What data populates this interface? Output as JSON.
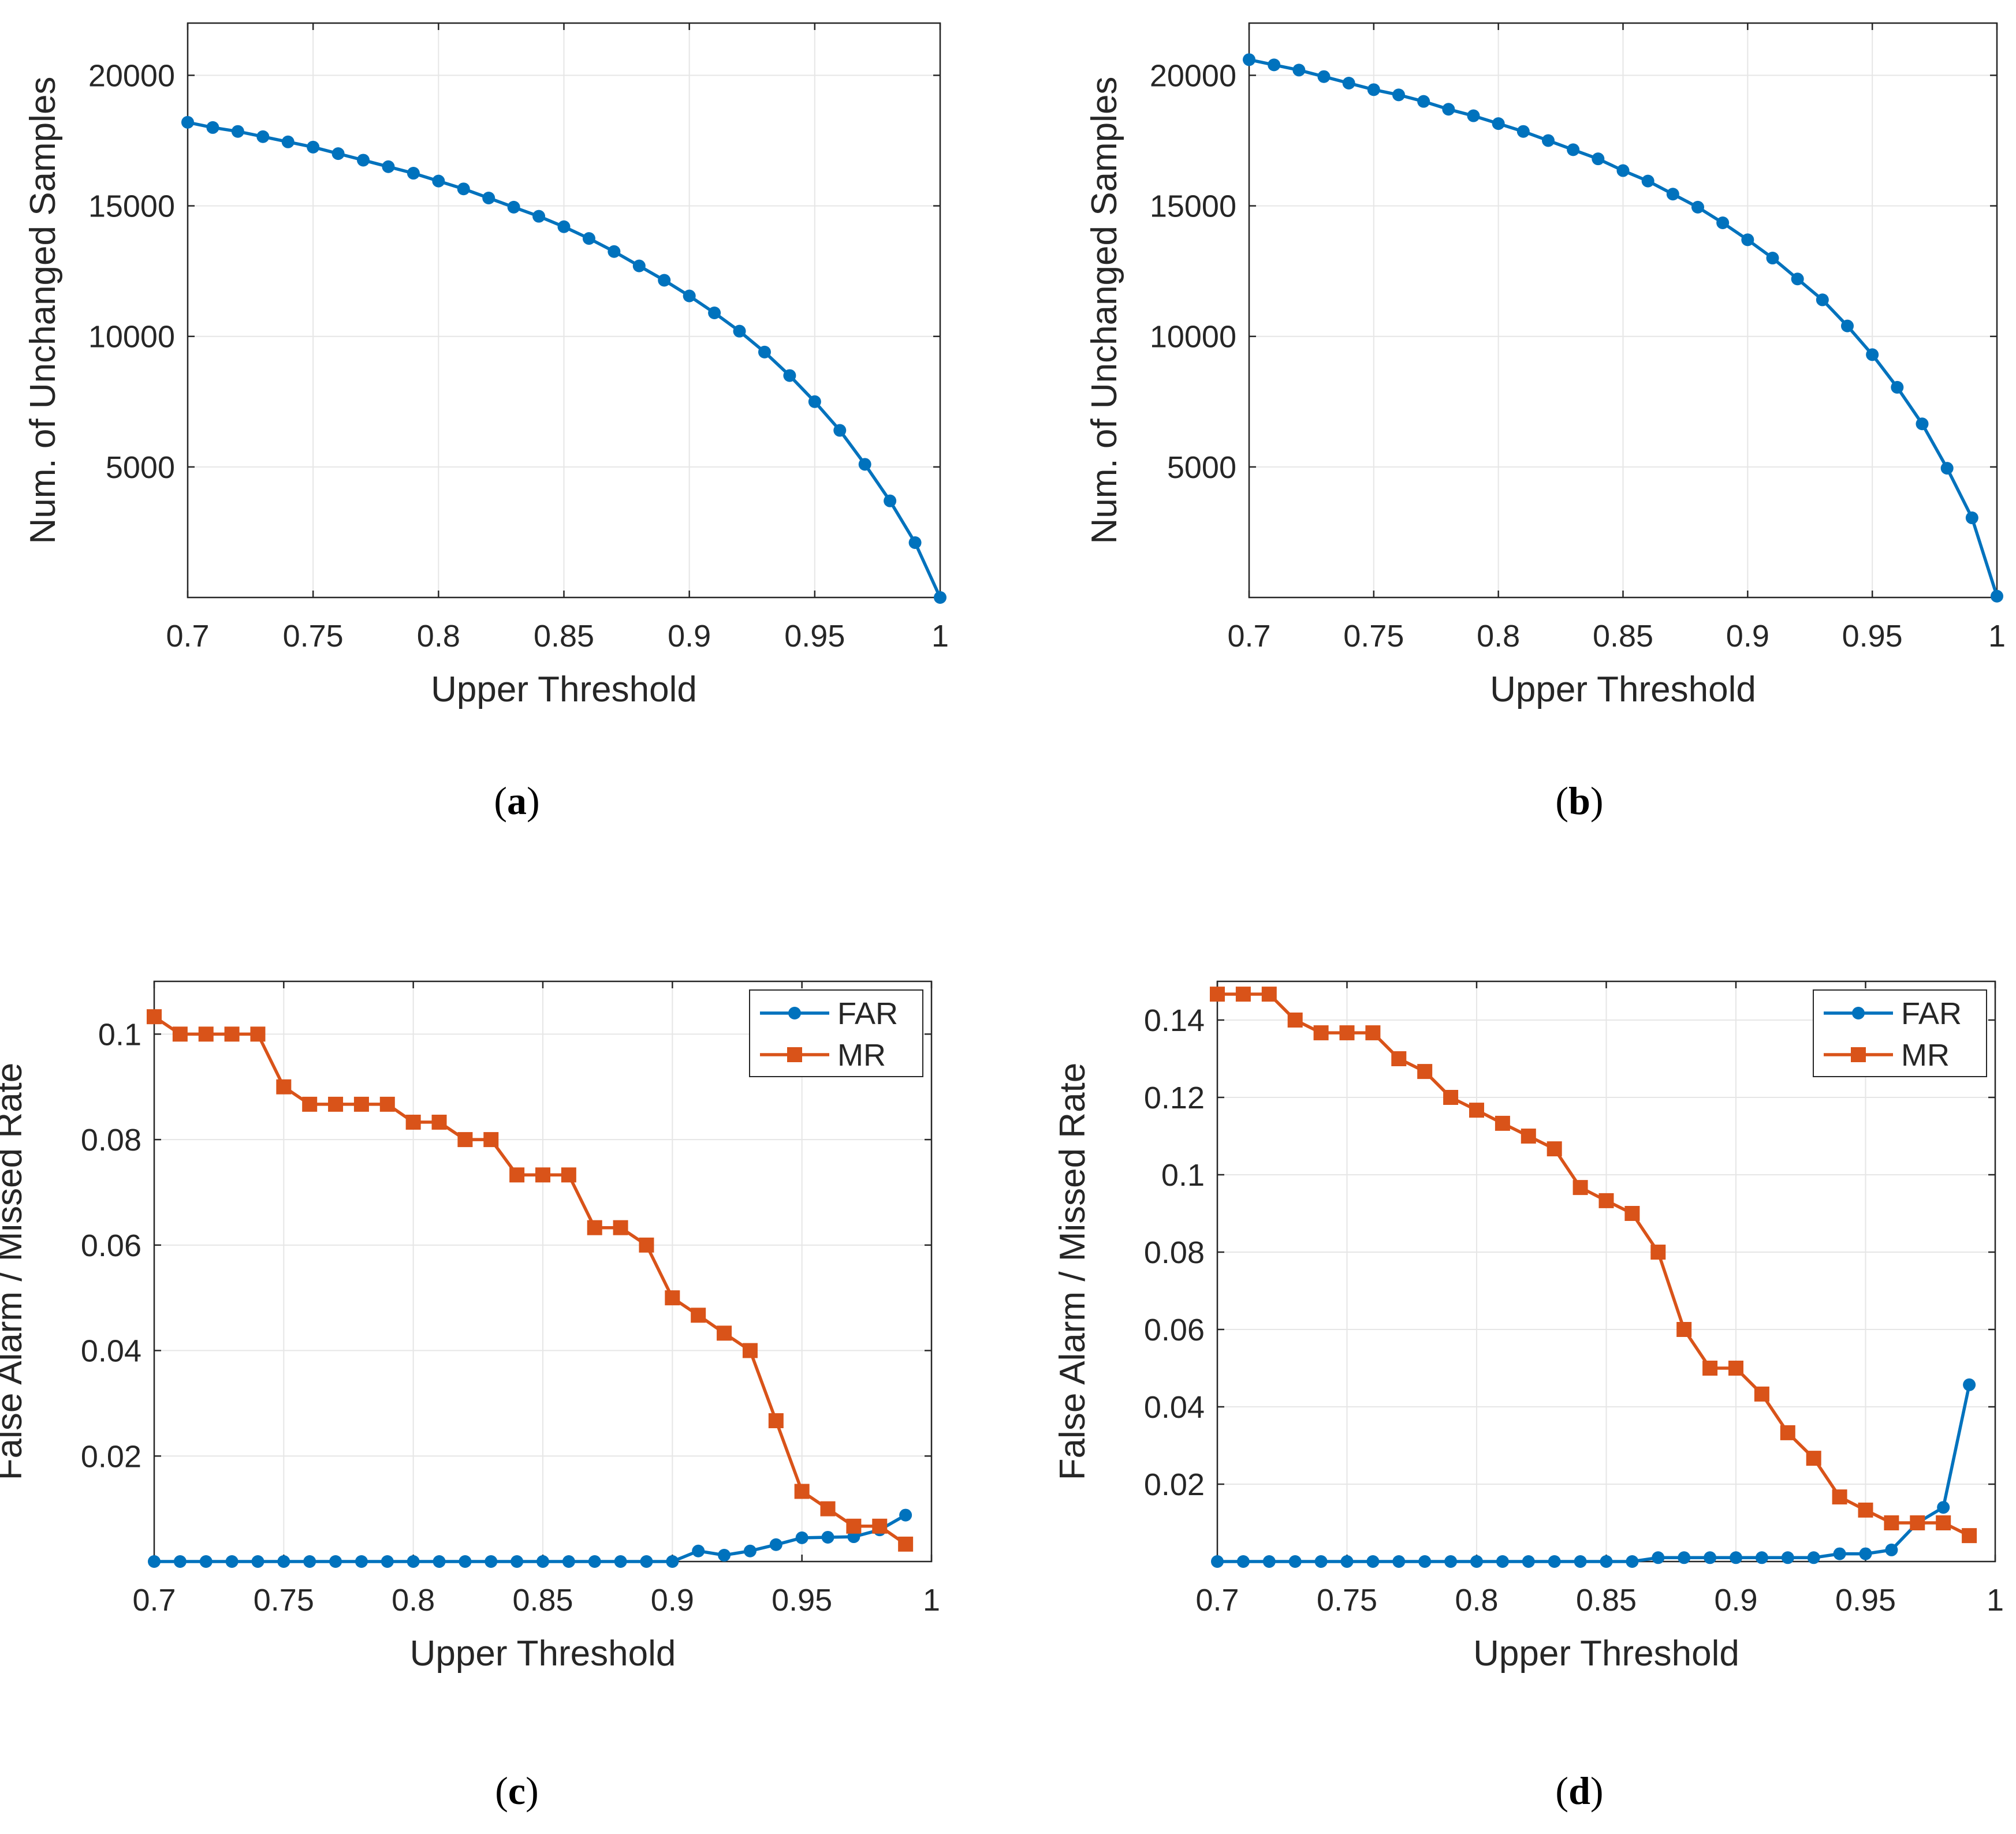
{
  "colors": {
    "far": "#0072BD",
    "mr": "#D95319",
    "grid": "#e6e6e6",
    "axis": "#262626"
  },
  "chart_data": [
    {
      "id": "a",
      "type": "line",
      "caption_letter": "a",
      "xlabel": "Upper Threshold",
      "ylabel": "Num. of Unchanged Samples",
      "xlim": [
        0.7,
        1
      ],
      "ylim": [
        0,
        22000
      ],
      "xticks": [
        0.7,
        0.75,
        0.8,
        0.85,
        0.9,
        0.95,
        1
      ],
      "xtick_labels": [
        "0.7",
        "0.75",
        "0.8",
        "0.85",
        "0.9",
        "0.95",
        "1"
      ],
      "yticks": [
        5000,
        10000,
        15000,
        20000
      ],
      "ytick_labels": [
        "5000",
        "10000",
        "15000",
        "20000"
      ],
      "legend": null,
      "series": [
        {
          "name": "samples",
          "color": "#0072BD",
          "marker": "circle",
          "x": [
            0.7,
            0.71,
            0.72,
            0.73,
            0.74,
            0.75,
            0.76,
            0.77,
            0.78,
            0.79,
            0.8,
            0.81,
            0.82,
            0.83,
            0.84,
            0.85,
            0.86,
            0.87,
            0.88,
            0.89,
            0.9,
            0.91,
            0.92,
            0.93,
            0.94,
            0.95,
            0.96,
            0.97,
            0.98,
            0.99,
            1.0
          ],
          "y": [
            18200,
            18000,
            17850,
            17650,
            17450,
            17250,
            17000,
            16750,
            16500,
            16250,
            15950,
            15650,
            15300,
            14950,
            14600,
            14200,
            13750,
            13250,
            12700,
            12150,
            11550,
            10900,
            10200,
            9400,
            8500,
            7500,
            6400,
            5100,
            3700,
            2100,
            0
          ]
        }
      ]
    },
    {
      "id": "b",
      "type": "line",
      "caption_letter": "b",
      "xlabel": "Upper Threshold",
      "ylabel": "Num. of Unchanged Samples",
      "xlim": [
        0.7,
        1
      ],
      "ylim": [
        0,
        22000
      ],
      "xticks": [
        0.7,
        0.75,
        0.8,
        0.85,
        0.9,
        0.95,
        1
      ],
      "xtick_labels": [
        "0.7",
        "0.75",
        "0.8",
        "0.85",
        "0.9",
        "0.95",
        "1"
      ],
      "yticks": [
        5000,
        10000,
        15000,
        20000
      ],
      "ytick_labels": [
        "5000",
        "10000",
        "15000",
        "20000"
      ],
      "legend": null,
      "series": [
        {
          "name": "samples",
          "color": "#0072BD",
          "marker": "circle",
          "x": [
            0.7,
            0.71,
            0.72,
            0.73,
            0.74,
            0.75,
            0.76,
            0.77,
            0.78,
            0.79,
            0.8,
            0.81,
            0.82,
            0.83,
            0.84,
            0.85,
            0.86,
            0.87,
            0.88,
            0.89,
            0.9,
            0.91,
            0.92,
            0.93,
            0.94,
            0.95,
            0.96,
            0.97,
            0.98,
            0.99,
            1.0
          ],
          "y": [
            20600,
            20400,
            20200,
            19950,
            19700,
            19450,
            19250,
            19000,
            18700,
            18450,
            18150,
            17850,
            17500,
            17150,
            16800,
            16350,
            15950,
            15450,
            14950,
            14350,
            13700,
            13000,
            12200,
            11400,
            10400,
            9300,
            8050,
            6650,
            4950,
            3050,
            50
          ]
        }
      ]
    },
    {
      "id": "c",
      "type": "line",
      "caption_letter": "c",
      "xlabel": "Upper Threshold",
      "ylabel": "False Alarm / Missed Rate",
      "xlim": [
        0.7,
        1
      ],
      "ylim": [
        0,
        0.11
      ],
      "xticks": [
        0.7,
        0.75,
        0.8,
        0.85,
        0.9,
        0.95,
        1
      ],
      "xtick_labels": [
        "0.7",
        "0.75",
        "0.8",
        "0.85",
        "0.9",
        "0.95",
        "1"
      ],
      "yticks": [
        0.02,
        0.04,
        0.06,
        0.08,
        0.1
      ],
      "ytick_labels": [
        "0.02",
        "0.04",
        "0.06",
        "0.08",
        "0.1"
      ],
      "legend": [
        "FAR",
        "MR"
      ],
      "series": [
        {
          "name": "FAR",
          "color": "#0072BD",
          "marker": "circle",
          "x": [
            0.7,
            0.71,
            0.72,
            0.73,
            0.74,
            0.75,
            0.76,
            0.77,
            0.78,
            0.79,
            0.8,
            0.81,
            0.82,
            0.83,
            0.84,
            0.85,
            0.86,
            0.87,
            0.88,
            0.89,
            0.9,
            0.91,
            0.92,
            0.93,
            0.94,
            0.95,
            0.96,
            0.97,
            0.98,
            0.99
          ],
          "y": [
            0,
            0,
            0,
            0,
            0,
            0,
            0,
            0,
            0,
            0,
            0,
            0,
            0,
            0,
            0,
            0,
            0,
            0,
            0,
            0,
            0,
            0.002,
            0.0012,
            0.002,
            0.0032,
            0.0045,
            0.0046,
            0.0047,
            0.006,
            0.0088
          ]
        },
        {
          "name": "MR",
          "color": "#D95319",
          "marker": "square",
          "x": [
            0.7,
            0.71,
            0.72,
            0.73,
            0.74,
            0.75,
            0.76,
            0.77,
            0.78,
            0.79,
            0.8,
            0.81,
            0.82,
            0.83,
            0.84,
            0.85,
            0.86,
            0.87,
            0.88,
            0.89,
            0.9,
            0.91,
            0.92,
            0.93,
            0.94,
            0.95,
            0.96,
            0.97,
            0.98,
            0.99
          ],
          "y": [
            0.1033,
            0.1,
            0.1,
            0.1,
            0.1,
            0.09,
            0.0867,
            0.0867,
            0.0867,
            0.0867,
            0.0833,
            0.0833,
            0.08,
            0.08,
            0.0733,
            0.0733,
            0.0733,
            0.0633,
            0.0633,
            0.06,
            0.05,
            0.0467,
            0.0433,
            0.04,
            0.0267,
            0.0133,
            0.01,
            0.0067,
            0.0067,
            0.0033
          ]
        }
      ]
    },
    {
      "id": "d",
      "type": "line",
      "caption_letter": "d",
      "xlabel": "Upper Threshold",
      "ylabel": "False Alarm / Missed Rate",
      "xlim": [
        0.7,
        1
      ],
      "ylim": [
        0,
        0.15
      ],
      "xticks": [
        0.7,
        0.75,
        0.8,
        0.85,
        0.9,
        0.95,
        1
      ],
      "xtick_labels": [
        "0.7",
        "0.75",
        "0.8",
        "0.85",
        "0.9",
        "0.95",
        "1"
      ],
      "yticks": [
        0.02,
        0.04,
        0.06,
        0.08,
        0.1,
        0.12,
        0.14
      ],
      "ytick_labels": [
        "0.02",
        "0.04",
        "0.06",
        "0.08",
        "0.1",
        "0.12",
        "0.14"
      ],
      "legend": [
        "FAR",
        "MR"
      ],
      "series": [
        {
          "name": "FAR",
          "color": "#0072BD",
          "marker": "circle",
          "x": [
            0.7,
            0.71,
            0.72,
            0.73,
            0.74,
            0.75,
            0.76,
            0.77,
            0.78,
            0.79,
            0.8,
            0.81,
            0.82,
            0.83,
            0.84,
            0.85,
            0.86,
            0.87,
            0.88,
            0.89,
            0.9,
            0.91,
            0.92,
            0.93,
            0.94,
            0.95,
            0.96,
            0.97,
            0.98,
            0.99
          ],
          "y": [
            0,
            0,
            0,
            0,
            0,
            0,
            0,
            0,
            0,
            0,
            0,
            0,
            0,
            0,
            0,
            0,
            0,
            0.001,
            0.001,
            0.001,
            0.001,
            0.001,
            0.001,
            0.001,
            0.002,
            0.002,
            0.003,
            0.01,
            0.014,
            0.0457
          ]
        },
        {
          "name": "MR",
          "color": "#D95319",
          "marker": "square",
          "x": [
            0.7,
            0.71,
            0.72,
            0.73,
            0.74,
            0.75,
            0.76,
            0.77,
            0.78,
            0.79,
            0.8,
            0.81,
            0.82,
            0.83,
            0.84,
            0.85,
            0.86,
            0.87,
            0.88,
            0.89,
            0.9,
            0.91,
            0.92,
            0.93,
            0.94,
            0.95,
            0.96,
            0.97,
            0.98,
            0.99
          ],
          "y": [
            0.1467,
            0.1467,
            0.1467,
            0.14,
            0.1367,
            0.1367,
            0.1367,
            0.13,
            0.1267,
            0.12,
            0.1167,
            0.1133,
            0.11,
            0.1067,
            0.0967,
            0.0933,
            0.09,
            0.08,
            0.06,
            0.05,
            0.05,
            0.0433,
            0.0333,
            0.0267,
            0.0167,
            0.0133,
            0.01,
            0.01,
            0.01,
            0.0067
          ]
        }
      ]
    }
  ]
}
